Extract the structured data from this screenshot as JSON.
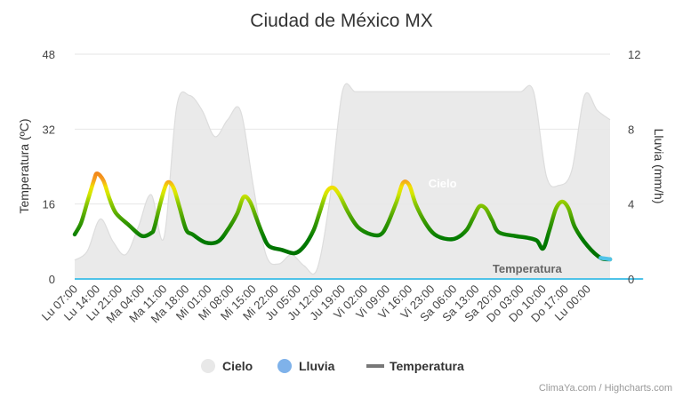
{
  "chart_data": {
    "type": "area",
    "title": "Ciudad de México MX",
    "y_left": {
      "label": "Temperatura (ºC)",
      "range": [
        0,
        48
      ],
      "ticks": [
        "0",
        "16",
        "32",
        "48"
      ]
    },
    "y_right": {
      "label": "Lluvia (mm/h)",
      "range": [
        0,
        12
      ],
      "ticks": [
        "0",
        "4",
        "8",
        "12"
      ]
    },
    "x_tick_labels": [
      "Lu 07:00",
      "Lu 14:00",
      "Lu 21:00",
      "Ma 04:00",
      "Ma 11:00",
      "Ma 18:00",
      "Mi 01:00",
      "Mi 08:00",
      "Mi 15:00",
      "Mi 22:00",
      "Ju 05:00",
      "Ju 12:00",
      "Ju 19:00",
      "Vi 02:00",
      "Vi 09:00",
      "Vi 16:00",
      "Vi 23:00",
      "Sa 06:00",
      "Sa 13:00",
      "Sa 20:00",
      "Do 03:00",
      "Do 10:00",
      "Do 17:00",
      "Lu 00:00"
    ],
    "x_start": "Lu 07:00",
    "x_step_hours": 7,
    "grid": true,
    "legend_position": "bottom",
    "series": [
      {
        "name": "Cielo",
        "kind": "area",
        "axis": "right",
        "color": "#e8e8e8",
        "hours": [
          0,
          4,
          8,
          12,
          16,
          20,
          24,
          28,
          32,
          36,
          40,
          44,
          48,
          52,
          56,
          60,
          64,
          68,
          72,
          76,
          80,
          84,
          88,
          92,
          96,
          100,
          104,
          108,
          112,
          116,
          120,
          124,
          128,
          132,
          136,
          140,
          144,
          148,
          152,
          156,
          160,
          164,
          168
        ],
        "values": [
          1.0,
          1.5,
          3.2,
          2.0,
          1.3,
          2.8,
          4.5,
          2.2,
          9.2,
          9.8,
          9.0,
          7.6,
          8.5,
          9.0,
          5.0,
          1.3,
          0.8,
          1.3,
          0.7,
          0.5,
          4.2,
          10.0,
          10.0,
          10.0,
          10.0,
          10.0,
          10.0,
          10.0,
          10.0,
          10.0,
          10.0,
          10.0,
          10.0,
          10.0,
          10.0,
          10.0,
          10.0,
          5.5,
          5.0,
          5.8,
          9.8,
          9.0,
          8.5
        ]
      },
      {
        "name": "Lluvia",
        "kind": "line",
        "axis": "right",
        "color": "#4fc3e8",
        "hours": [
          0,
          165,
          168
        ],
        "values": [
          0,
          0,
          0
        ]
      },
      {
        "name": "Temperatura",
        "kind": "line",
        "axis": "left",
        "color": "#777777",
        "hours": [
          0,
          2,
          4,
          6,
          7,
          9,
          11,
          13,
          17,
          21,
          24,
          25,
          27,
          29,
          31,
          33,
          35,
          37,
          41,
          45,
          48,
          51,
          53,
          55,
          57,
          59,
          61,
          65,
          69,
          72,
          75,
          77,
          79,
          81,
          83,
          86,
          89,
          93,
          96,
          98,
          101,
          103,
          105,
          107,
          110,
          113,
          117,
          120,
          123,
          125,
          127,
          129,
          131,
          133,
          138,
          142,
          145,
          147,
          149,
          151,
          153,
          155,
          157,
          161,
          165,
          168
        ],
        "values": [
          9.5,
          12.0,
          16.5,
          21.0,
          22.5,
          21.0,
          17.0,
          14.0,
          11.5,
          9.2,
          9.8,
          11.0,
          16.5,
          20.5,
          19.5,
          15.0,
          10.5,
          9.5,
          7.8,
          8.0,
          10.5,
          14.0,
          17.5,
          16.5,
          13.0,
          9.5,
          7.0,
          6.2,
          5.5,
          7.0,
          10.5,
          14.5,
          18.5,
          19.5,
          18.0,
          14.0,
          11.0,
          9.5,
          9.5,
          11.5,
          16.5,
          20.5,
          20.0,
          16.0,
          12.0,
          9.5,
          8.5,
          8.8,
          10.5,
          13.0,
          15.5,
          15.0,
          12.5,
          10.0,
          9.2,
          8.8,
          8.2,
          6.5,
          10.5,
          15.0,
          16.5,
          15.0,
          11.0,
          7.0,
          4.5,
          4.2
        ]
      }
    ],
    "annotations": [
      {
        "text": "Cielo",
        "color": "#ffffff",
        "at_hour": 111,
        "at_value_left": 19.5
      },
      {
        "text": "Temperatura",
        "color": "#666666",
        "at_hour": 142,
        "at_value_left": 1.3
      }
    ]
  },
  "legend": [
    {
      "name": "Cielo",
      "icon": "circle",
      "color": "#e8e8e8"
    },
    {
      "name": "Lluvia",
      "icon": "circle",
      "color": "#7fb2ea"
    },
    {
      "name": "Temperatura",
      "icon": "line",
      "color": "#777777"
    }
  ],
  "credits": "ClimaYa.com / Highcharts.com"
}
